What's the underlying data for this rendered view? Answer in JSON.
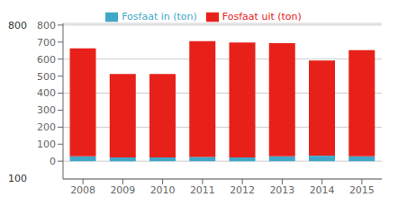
{
  "chart_data": {
    "type": "bar",
    "stacked": true,
    "categories": [
      "2008",
      "2009",
      "2010",
      "2011",
      "2012",
      "2013",
      "2014",
      "2015"
    ],
    "series": [
      {
        "name": "Fosfaat in (ton)",
        "color": "#3fa8c8",
        "values": [
          28,
          22,
          22,
          25,
          22,
          28,
          32,
          28
        ]
      },
      {
        "name": "Fosfaat uit (ton)",
        "color": "#e8201a",
        "values": [
          635,
          490,
          490,
          680,
          675,
          665,
          560,
          625
        ]
      }
    ],
    "ylim": [
      -105,
      810
    ],
    "yticks": [
      0,
      100,
      200,
      300,
      400,
      500,
      600,
      700,
      800
    ],
    "grid": true,
    "legend": "top",
    "annotations": [
      {
        "text": "800",
        "y": 800
      },
      {
        "text": "100",
        "y": -100
      }
    ]
  }
}
